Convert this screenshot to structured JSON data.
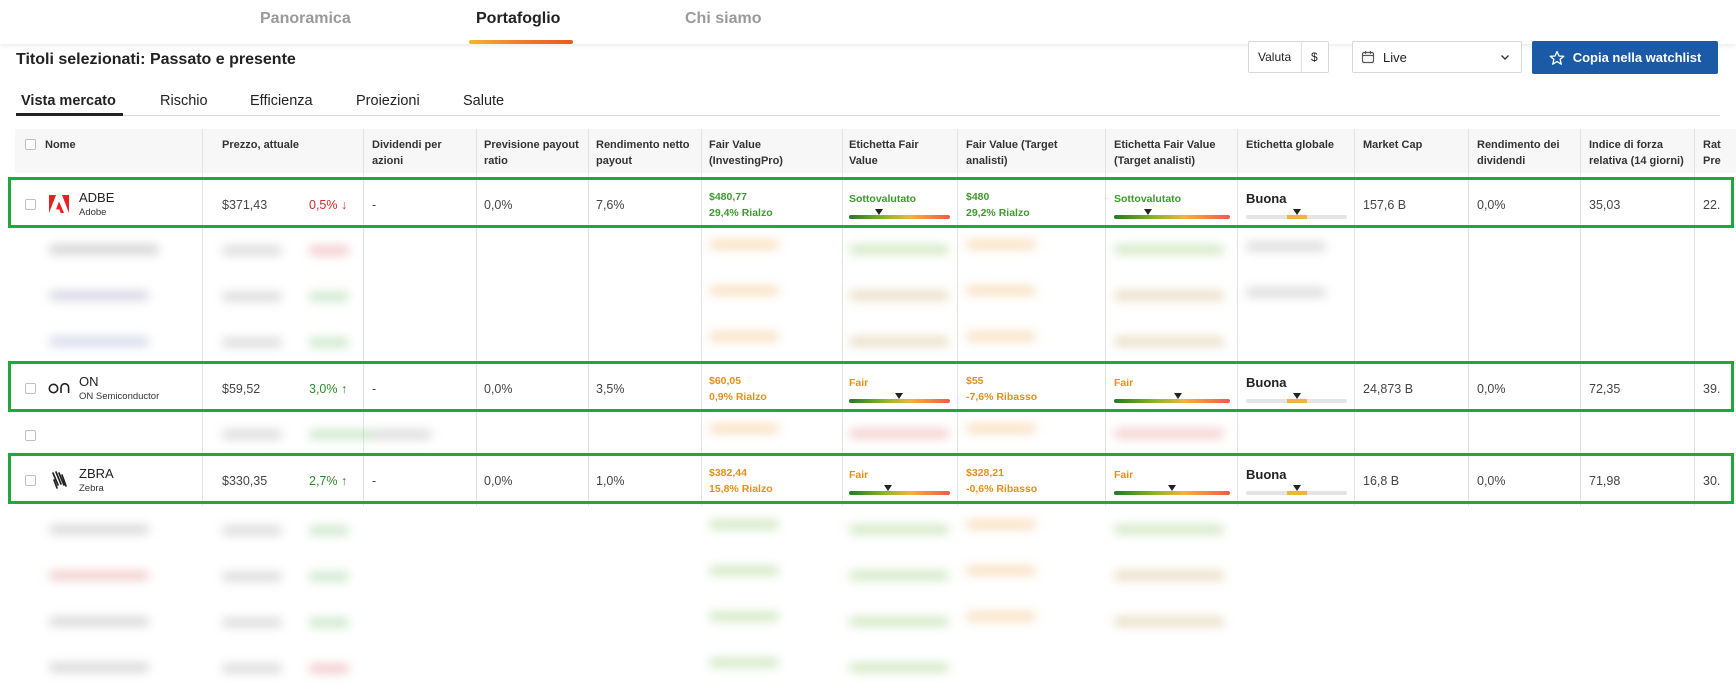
{
  "nav": {
    "tabs": [
      {
        "label": "Panoramica"
      },
      {
        "label": "Portafoglio"
      },
      {
        "label": "Chi siamo"
      }
    ],
    "active_index": 1
  },
  "page": {
    "title": "Titoli selezionati: Passato e presente"
  },
  "controls": {
    "currency_label": "Valuta",
    "currency_value": "$",
    "period_value": "Live",
    "watchlist_button": "Copia nella watchlist"
  },
  "subtabs": [
    {
      "label": "Vista mercato"
    },
    {
      "label": "Rischio"
    },
    {
      "label": "Efficienza"
    },
    {
      "label": "Proiezioni"
    },
    {
      "label": "Salute"
    }
  ],
  "table": {
    "headers": [
      {
        "line1": "Nome",
        "line2": ""
      },
      {
        "line1": "Prezzo, attuale",
        "line2": ""
      },
      {
        "line1": "Dividendi per",
        "line2": "azioni"
      },
      {
        "line1": "Previsione payout",
        "line2": "ratio"
      },
      {
        "line1": "Rendimento netto",
        "line2": "payout"
      },
      {
        "line1": "Fair Value",
        "line2": "(InvestingPro)"
      },
      {
        "line1": "Etichetta Fair",
        "line2": "Value"
      },
      {
        "line1": "Fair Value (Target",
        "line2": "analisti)"
      },
      {
        "line1": "Etichetta Fair Value",
        "line2": "(Target analisti)"
      },
      {
        "line1": "Etichetta globale",
        "line2": ""
      },
      {
        "line1": "Market Cap",
        "line2": ""
      },
      {
        "line1": "Rendimento dei",
        "line2": "dividendi"
      },
      {
        "line1": "Indice di forza",
        "line2": "relativa (14 giorni)"
      },
      {
        "line1": "Rat",
        "line2": "Pre"
      }
    ],
    "rows": [
      {
        "symbol": "ADBE",
        "name": "Adobe",
        "logo": "adobe-logo",
        "price": "$371,43",
        "change": "0,5%",
        "direction": "down",
        "dividend": "-",
        "payout_forecast": "0,0%",
        "net_payout_yield": "7,6%",
        "fv_pro": "$480,77",
        "fv_pro_upside": "29,4% Rialzo",
        "fv_color": "green",
        "fv_label": "Sottovalutato",
        "fv_marker": 0.3,
        "fv_analyst": "$480",
        "fv_analyst_upside": "29,2% Rialzo",
        "fva_color": "green",
        "fva_label": "Sottovalutato",
        "fva_marker": 0.3,
        "global_label": "Buona",
        "global_level": 0.5,
        "market_cap": "157,6 B",
        "div_yield": "0,0%",
        "rsi": "35,03",
        "last": "22."
      },
      {
        "symbol": "ON",
        "name": "ON Semiconductor",
        "logo": "on-semiconductor-logo",
        "price": "$59,52",
        "change": "3,0%",
        "direction": "up",
        "dividend": "-",
        "payout_forecast": "0,0%",
        "net_payout_yield": "3,5%",
        "fv_pro": "$60,05",
        "fv_pro_upside": "0,9% Rialzo",
        "fv_color": "orange",
        "fv_label": "Fair",
        "fv_marker": 0.48,
        "fv_analyst": "$55",
        "fv_analyst_upside": "-7,6% Ribasso",
        "fva_color": "orange",
        "fva_label": "Fair",
        "fva_marker": 0.55,
        "global_label": "Buona",
        "global_level": 0.5,
        "market_cap": "24,873 B",
        "div_yield": "0,0%",
        "rsi": "72,35",
        "last": "39."
      },
      {
        "symbol": "ZBRA",
        "name": "Zebra",
        "logo": "zebra-logo",
        "price": "$330,35",
        "change": "2,7%",
        "direction": "up",
        "dividend": "-",
        "payout_forecast": "0,0%",
        "net_payout_yield": "1,0%",
        "fv_pro": "$382,44",
        "fv_pro_upside": "15,8% Rialzo",
        "fv_color": "orange",
        "fv_label": "Fair",
        "fv_marker": 0.38,
        "fv_analyst": "$328,21",
        "fv_analyst_upside": "-0,6% Ribasso",
        "fva_color": "orange",
        "fva_label": "Fair",
        "fva_marker": 0.5,
        "global_label": "Buona",
        "global_level": 0.5,
        "market_cap": "16,8 B",
        "div_yield": "0,0%",
        "rsi": "71,98",
        "last": "30."
      }
    ]
  },
  "colors": {
    "accent": "#1b5aa6",
    "highlight": "#20a73e",
    "up": "#2e8b2e",
    "down": "#d6292b",
    "fv_green": "#3d9b2c",
    "fv_orange": "#e3901b"
  }
}
